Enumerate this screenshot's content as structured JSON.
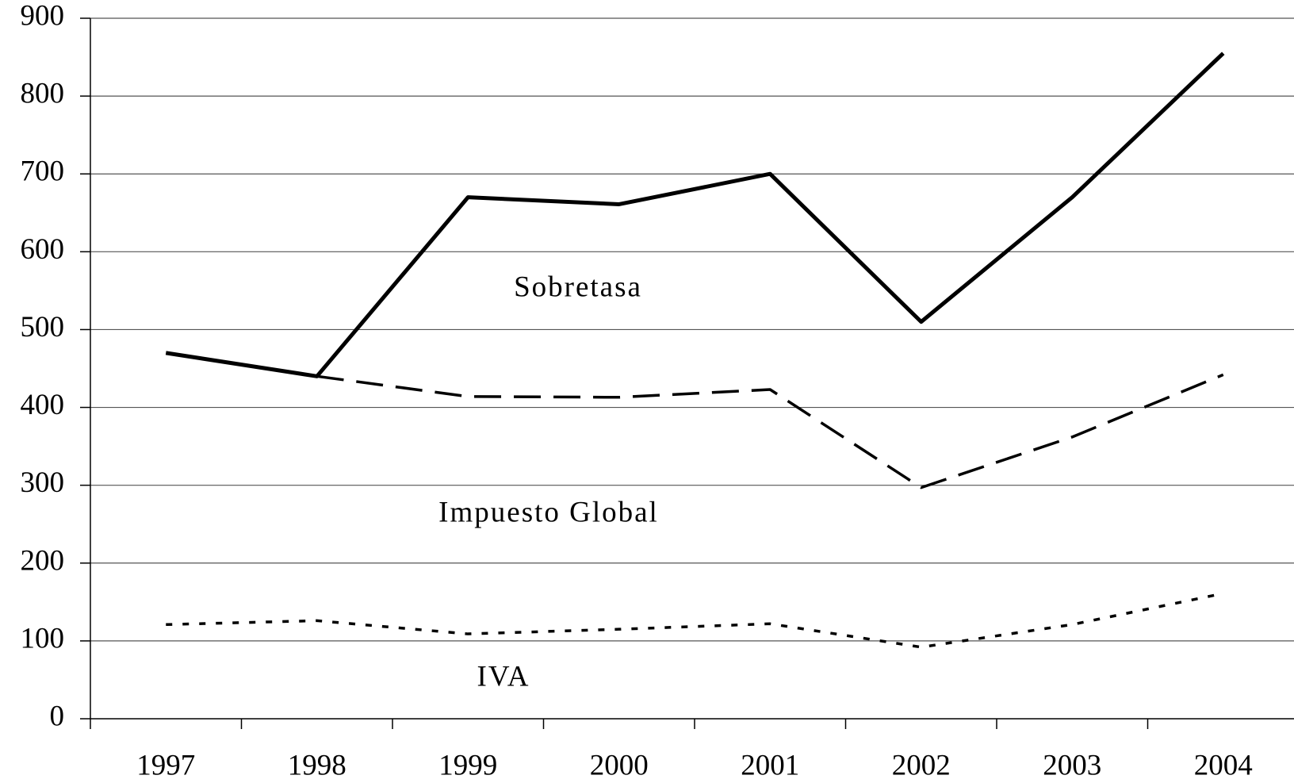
{
  "chart_data": {
    "type": "line",
    "categories": [
      "1997",
      "1998",
      "1999",
      "2000",
      "2001",
      "2002",
      "2003",
      "2004"
    ],
    "series": [
      {
        "name": "Sobretasa",
        "color": "#000000",
        "style": "solid",
        "values": [
          470,
          440,
          670,
          661,
          700,
          510,
          670,
          855
        ]
      },
      {
        "name": "Impuesto Global",
        "color": "#000000",
        "style": "dashed",
        "values": [
          null,
          440,
          414,
          413,
          423,
          297,
          362,
          442
        ]
      },
      {
        "name": "IVA",
        "color": "#000000",
        "style": "dotted",
        "values": [
          121,
          126,
          109,
          115,
          122,
          92,
          121,
          161
        ]
      }
    ],
    "ylim": [
      0,
      900
    ],
    "yticks": [
      0,
      100,
      200,
      300,
      400,
      500,
      600,
      700,
      800,
      900
    ],
    "grid": true
  }
}
